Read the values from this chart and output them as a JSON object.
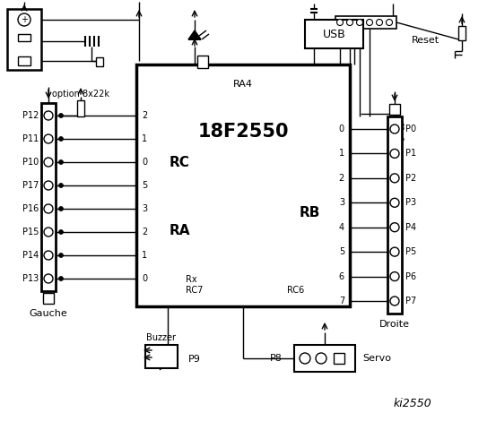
{
  "bg_color": "#ffffff",
  "line_color": "#000000",
  "fig_width": 5.53,
  "fig_height": 4.8,
  "chip_label": "18F2550",
  "chip_sublabel": "RA4",
  "left_connector_label": "Gauche",
  "right_connector_label": "Droite",
  "left_pins": [
    "P12",
    "P11",
    "P10",
    "P17",
    "P16",
    "P15",
    "P14",
    "P13"
  ],
  "right_pins": [
    "P0",
    "P1",
    "P2",
    "P3",
    "P4",
    "P5",
    "P6",
    "P7"
  ],
  "rc_labels": [
    "2",
    "1",
    "0",
    "5",
    "3",
    "2",
    "1",
    "0"
  ],
  "rb_labels": [
    "0",
    "1",
    "2",
    "3",
    "4",
    "5",
    "6",
    "7"
  ],
  "option_label": "option 8x22k",
  "usb_label": "USB",
  "reset_label": "Reset",
  "buzzer_label": "Buzzer",
  "servo_label": "Servo",
  "ki_label": "ki2550",
  "rc_group": "RC",
  "ra_group": "RA",
  "rb_group": "RB",
  "rx_label": "Rx",
  "rc7_label": "RC7",
  "rc6_label": "RC6",
  "p8_label": "P8",
  "p9_label": "P9"
}
